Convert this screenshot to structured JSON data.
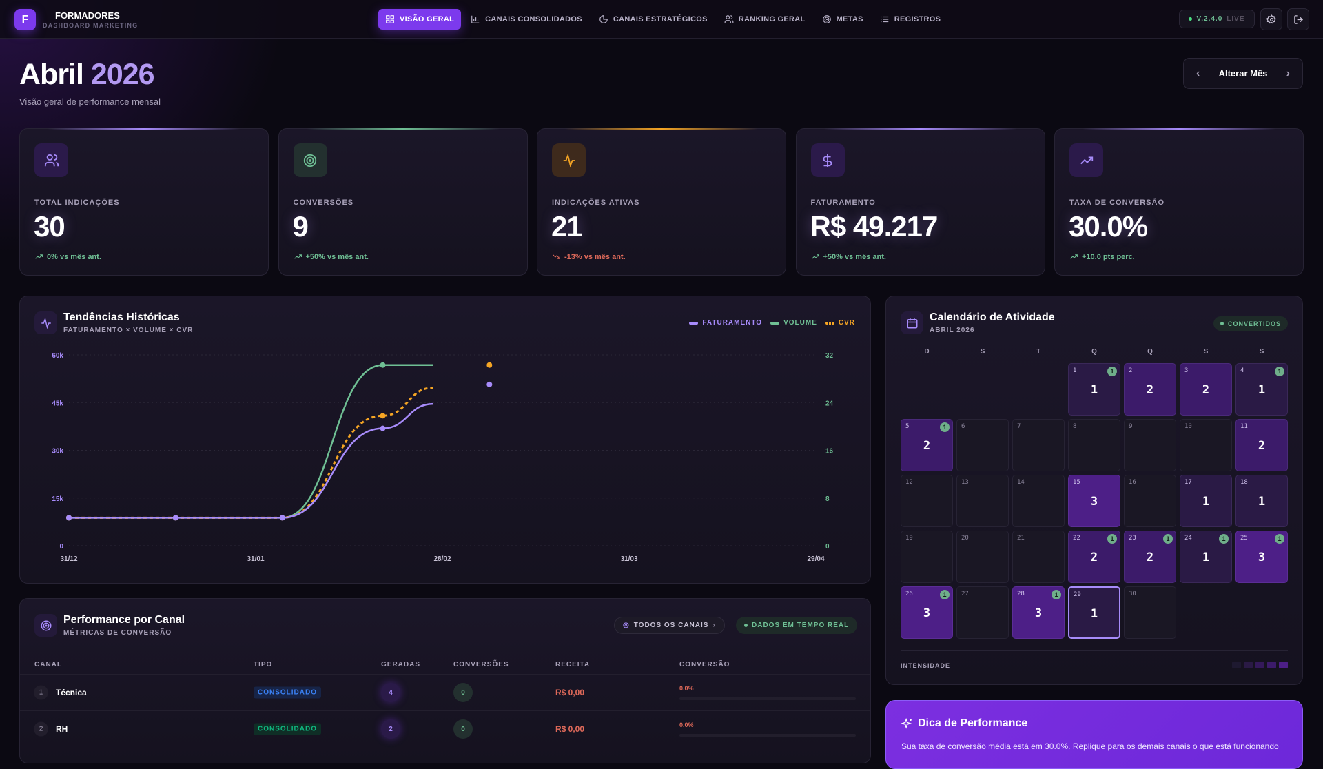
{
  "brand": {
    "logo_letter": "F",
    "title": "FORMADORES",
    "subtitle": "DASHBOARD MARKETING",
    "accent": "#7c3aed"
  },
  "nav": {
    "tabs": [
      {
        "label": "VISÃO GERAL",
        "icon": "grid-icon",
        "active": true
      },
      {
        "label": "CANAIS CONSOLIDADOS",
        "icon": "bar-chart-icon"
      },
      {
        "label": "CANAIS ESTRATÉGICOS",
        "icon": "pie-chart-icon"
      },
      {
        "label": "RANKING GERAL",
        "icon": "users-icon"
      },
      {
        "label": "METAS",
        "icon": "target-icon"
      },
      {
        "label": "REGISTROS",
        "icon": "list-icon"
      }
    ],
    "version": "V.2.4.0",
    "live": "LIVE"
  },
  "header": {
    "title_month": "Abril",
    "title_year": "2026",
    "subtitle": "Visão geral de performance mensal",
    "month_button": "Alterar Mês"
  },
  "kpis": [
    {
      "label": "TOTAL INDICAÇÕES",
      "value": "30",
      "delta": "0% vs mês ant.",
      "trend": "up",
      "icon": "users-icon",
      "color": "#a78bfa"
    },
    {
      "label": "CONVERSÕES",
      "value": "9",
      "delta": "+50% vs mês ant.",
      "trend": "up",
      "icon": "target-icon",
      "color": "#6fbf94"
    },
    {
      "label": "INDICAÇÕES ATIVAS",
      "value": "21",
      "delta": "-13% vs mês ant.",
      "trend": "down",
      "icon": "activity-icon",
      "color": "#f5a524"
    },
    {
      "label": "FATURAMENTO",
      "value": "R$ 49.217",
      "delta": "+50% vs mês ant.",
      "trend": "up",
      "icon": "dollar-icon",
      "color": "#a78bfa"
    },
    {
      "label": "TAXA DE CONVERSÃO",
      "value": "30.0%",
      "delta": "+10.0 pts perc.",
      "trend": "up",
      "icon": "trending-up-icon",
      "color": "#a78bfa"
    }
  ],
  "trends": {
    "title": "Tendências Históricas",
    "subtitle": "FATURAMENTO × VOLUME × CVR"
  },
  "chart_data": {
    "type": "line",
    "x_ticks": [
      "31/12",
      "31/01",
      "28/02",
      "31/03",
      "29/04"
    ],
    "x_range": [
      "2025-12-31",
      "2026-04-29"
    ],
    "y_left": {
      "ticks": [
        "0",
        "15k",
        "30k",
        "45k",
        "60k"
      ],
      "range": [
        0,
        60000
      ]
    },
    "y_right": {
      "ticks": [
        "0",
        "8",
        "16",
        "24",
        "32"
      ],
      "range": [
        0,
        32
      ]
    },
    "grid": "horizontal dotted",
    "legend_position": "top-right",
    "x": [
      "2025-12-31",
      "2026-01-17",
      "2026-02-03",
      "2026-02-19",
      "2026-02-27",
      "2026-03-08"
    ],
    "series": [
      {
        "name": "FATURAMENTO",
        "axis": "left",
        "color": "#a78bfa",
        "dashed": false,
        "values": [
          8800,
          8800,
          8800,
          36900,
          44600,
          50700
        ]
      },
      {
        "name": "VOLUME",
        "axis": "right",
        "color": "#6fbf94",
        "dashed": false,
        "values": [
          4.7,
          4.7,
          4.7,
          30.3,
          30.3,
          null
        ]
      },
      {
        "name": "CVR",
        "axis": "right",
        "color": "#f5a524",
        "dashed": true,
        "values": [
          4.7,
          4.7,
          4.7,
          21.8,
          26.5,
          30.3
        ]
      }
    ]
  },
  "calendar": {
    "title": "Calendário de Atividade",
    "subtitle": "ABRIL 2026",
    "badge": "CONVERTIDOS",
    "weekdays": [
      "D",
      "S",
      "T",
      "Q",
      "Q",
      "S",
      "S"
    ],
    "first_weekday": 3,
    "today": 29,
    "days": [
      {
        "d": 1,
        "c": 1,
        "conv": 1
      },
      {
        "d": 2,
        "c": 2
      },
      {
        "d": 3,
        "c": 2
      },
      {
        "d": 4,
        "c": 1,
        "conv": 1
      },
      {
        "d": 5,
        "c": 2,
        "conv": 1
      },
      {
        "d": 6
      },
      {
        "d": 7
      },
      {
        "d": 8
      },
      {
        "d": 9
      },
      {
        "d": 10
      },
      {
        "d": 11,
        "c": 2
      },
      {
        "d": 12
      },
      {
        "d": 13
      },
      {
        "d": 14
      },
      {
        "d": 15,
        "c": 3
      },
      {
        "d": 16
      },
      {
        "d": 17,
        "c": 1
      },
      {
        "d": 18,
        "c": 1
      },
      {
        "d": 19
      },
      {
        "d": 20
      },
      {
        "d": 21
      },
      {
        "d": 22,
        "c": 2,
        "conv": 1
      },
      {
        "d": 23,
        "c": 2,
        "conv": 1
      },
      {
        "d": 24,
        "c": 1,
        "conv": 1
      },
      {
        "d": 25,
        "c": 3,
        "conv": 1
      },
      {
        "d": 26,
        "c": 3,
        "conv": 1
      },
      {
        "d": 27
      },
      {
        "d": 28,
        "c": 3,
        "conv": 1
      },
      {
        "d": 29,
        "c": 1
      },
      {
        "d": 30
      }
    ],
    "intensity_label": "INTENSIDADE"
  },
  "performance": {
    "title": "Performance por Canal",
    "subtitle": "MÉTRICAS DE CONVERSÃO",
    "filter": "TODOS OS CANAIS",
    "realtime": "DADOS EM TEMPO REAL",
    "columns": [
      "CANAL",
      "TIPO",
      "GERADAS",
      "CONVERSÕES",
      "RECEITA",
      "CONVERSÃO"
    ],
    "rows": [
      {
        "rank": "1",
        "name": "Técnica",
        "type": "CONSOLIDADO",
        "type_color": "#3b82f6",
        "generated": "4",
        "conversions": "0",
        "revenue": "R$ 0,00",
        "rate": "0.0%",
        "rate_value": 0
      },
      {
        "rank": "2",
        "name": "RH",
        "type": "CONSOLIDADO",
        "type_color": "#10b981",
        "generated": "2",
        "conversions": "0",
        "revenue": "R$ 0,00",
        "rate": "0.0%",
        "rate_value": 0
      }
    ]
  },
  "tip": {
    "title": "Dica de Performance",
    "text": "Sua taxa de conversão média está em 30.0%. Replique para os demais canais o que está funcionando"
  }
}
